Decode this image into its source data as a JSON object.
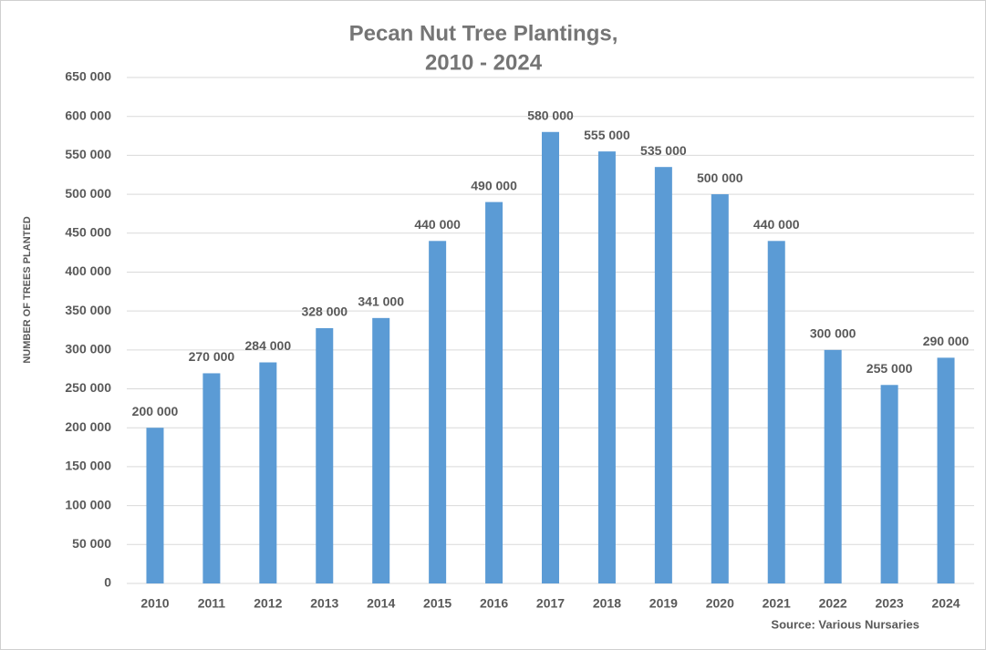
{
  "chart_data": {
    "type": "bar",
    "title": [
      "Pecan Nut Tree Plantings,",
      "2010 - 2024"
    ],
    "y_label": "NUMBER OF  TREES PLANTED",
    "source": "Source: Various Nursaries",
    "categories": [
      "2010",
      "2011",
      "2012",
      "2013",
      "2014",
      "2015",
      "2016",
      "2017",
      "2018",
      "2019",
      "2020",
      "2021",
      "2022",
      "2023",
      "2024"
    ],
    "values": [
      200000,
      270000,
      284000,
      328000,
      341000,
      440000,
      490000,
      580000,
      555000,
      535000,
      500000,
      440000,
      300000,
      255000,
      290000
    ],
    "value_labels": [
      "200 000",
      "270 000",
      "284 000",
      "328 000",
      "341 000",
      "440 000",
      "490 000",
      "580 000",
      "555 000",
      "535 000",
      "500 000",
      "440 000",
      "300 000",
      "255 000",
      "290 000"
    ],
    "color": "#5b9bd5",
    "ylim": [
      0,
      650000
    ],
    "yticks": [
      0,
      {
        "value": 50000,
        "label": "50 000"
      },
      {
        "value": 100000,
        "label": "100 000"
      },
      {
        "value": 150000,
        "label": "150 000"
      },
      {
        "value": 200000,
        "label": "200 000"
      },
      {
        "value": 250000,
        "label": "250 000"
      },
      {
        "value": 300000,
        "label": "300 000"
      },
      {
        "value": 350000,
        "label": "350 000"
      },
      {
        "value": 400000,
        "label": "400 000"
      },
      {
        "value": 450000,
        "label": "450 000"
      },
      {
        "value": 500000,
        "label": "500 000"
      },
      {
        "value": 550000,
        "label": "550 000"
      },
      {
        "value": 600000,
        "label": "600 000"
      },
      {
        "value": 650000,
        "label": "650 000"
      }
    ],
    "grid": true
  }
}
